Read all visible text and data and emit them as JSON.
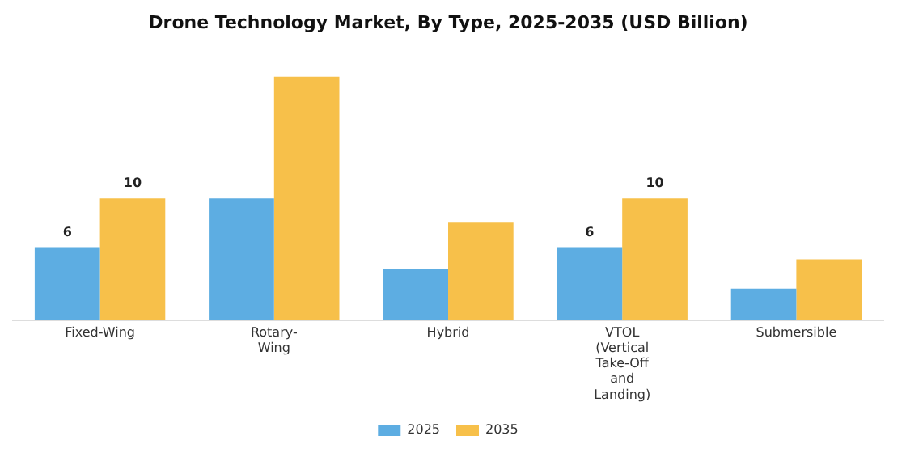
{
  "chart_data": {
    "type": "bar",
    "title": "Drone Technology Market, By Type, 2025-2035 (USD Billion)",
    "categories": [
      "Fixed-Wing",
      "Rotary-Wing",
      "Hybrid",
      "VTOL (Vertical Take-Off and Landing)",
      "Submersible"
    ],
    "series": [
      {
        "name": "2025",
        "color": "#5dade2",
        "values": [
          6,
          10,
          4.2,
          6,
          2.6
        ],
        "value_labels": [
          "6",
          null,
          null,
          "6",
          null
        ]
      },
      {
        "name": "2035",
        "color": "#f7c04a",
        "values": [
          10,
          20,
          8,
          10,
          5
        ],
        "value_labels": [
          "10",
          null,
          null,
          "10",
          null
        ]
      }
    ],
    "grid": false,
    "legend": "bottom"
  }
}
